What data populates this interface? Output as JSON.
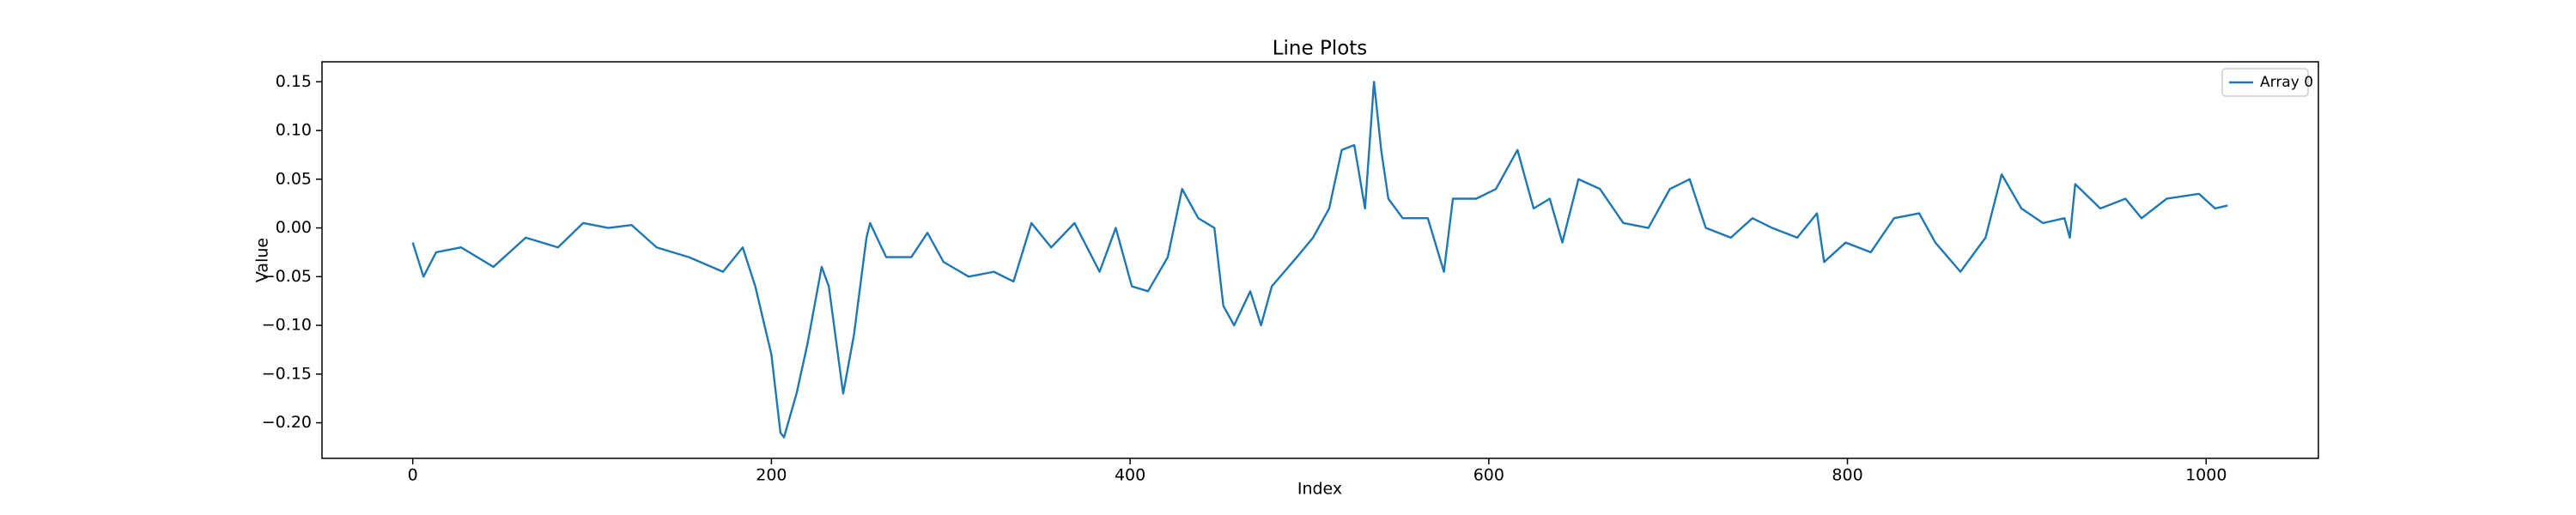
{
  "chart_data": {
    "type": "line",
    "title": "Line Plots",
    "x_label": "Index",
    "y_label": "Value",
    "x": [
      0,
      6,
      13,
      27,
      45,
      63,
      81,
      95,
      109,
      122,
      136,
      154,
      173,
      184,
      191,
      200,
      205,
      207,
      214,
      220,
      228,
      232,
      240,
      246,
      253,
      255,
      264,
      278,
      287,
      296,
      310,
      324,
      335,
      345,
      356,
      369,
      383,
      392,
      401,
      410,
      421,
      429,
      438,
      447,
      452,
      458,
      467,
      473,
      479,
      493,
      502,
      511,
      518,
      525,
      531,
      536,
      540,
      544,
      552,
      566,
      575,
      580,
      593,
      604,
      616,
      625,
      634,
      641,
      650,
      662,
      675,
      689,
      701,
      712,
      721,
      735,
      747,
      758,
      772,
      783,
      787,
      799,
      813,
      826,
      840,
      849,
      863,
      877,
      886,
      897,
      909,
      921,
      924,
      927,
      941,
      955,
      964,
      978,
      996,
      1005,
      1012
    ],
    "series": [
      {
        "name": "Array 0",
        "color": "#1f77b4",
        "values": [
          -0.015,
          -0.05,
          -0.025,
          -0.02,
          -0.04,
          -0.01,
          -0.02,
          0.005,
          0.0,
          0.003,
          -0.02,
          -0.03,
          -0.045,
          -0.02,
          -0.06,
          -0.13,
          -0.21,
          -0.215,
          -0.17,
          -0.12,
          -0.04,
          -0.06,
          -0.17,
          -0.11,
          -0.01,
          0.005,
          -0.03,
          -0.03,
          -0.005,
          -0.035,
          -0.05,
          -0.045,
          -0.055,
          0.005,
          -0.02,
          0.005,
          -0.045,
          0.0,
          -0.06,
          -0.065,
          -0.03,
          0.04,
          0.01,
          0.0,
          -0.08,
          -0.1,
          -0.065,
          -0.1,
          -0.06,
          -0.03,
          -0.01,
          0.02,
          0.08,
          0.085,
          0.02,
          0.15,
          0.08,
          0.03,
          0.01,
          0.01,
          -0.045,
          0.03,
          0.03,
          0.04,
          0.08,
          0.02,
          0.03,
          -0.015,
          0.05,
          0.04,
          0.005,
          0.0,
          0.04,
          0.05,
          0.0,
          -0.01,
          0.01,
          0.0,
          -0.01,
          0.015,
          -0.035,
          -0.015,
          -0.025,
          0.01,
          0.015,
          -0.015,
          -0.045,
          -0.01,
          0.055,
          0.02,
          0.005,
          0.01,
          -0.01,
          0.045,
          0.02,
          0.03,
          0.01,
          0.03,
          0.035,
          0.02,
          0.023
        ]
      }
    ],
    "xlim": [
      -50.6,
      1062.6
    ],
    "ylim": [
      -0.2365,
      0.1705
    ],
    "xticks": [
      0,
      200,
      400,
      600,
      800,
      1000
    ],
    "yticks": [
      {
        "value": -0.2,
        "label": "−0.20"
      },
      {
        "value": -0.15,
        "label": "−0.15"
      },
      {
        "value": -0.1,
        "label": "−0.10"
      },
      {
        "value": -0.05,
        "label": "−0.05"
      },
      {
        "value": 0,
        "label": "0.00"
      },
      {
        "value": 0.05,
        "label": "0.05"
      },
      {
        "value": 0.1,
        "label": "0.10"
      },
      0.15
    ],
    "grid": false,
    "legend": "upper right"
  }
}
